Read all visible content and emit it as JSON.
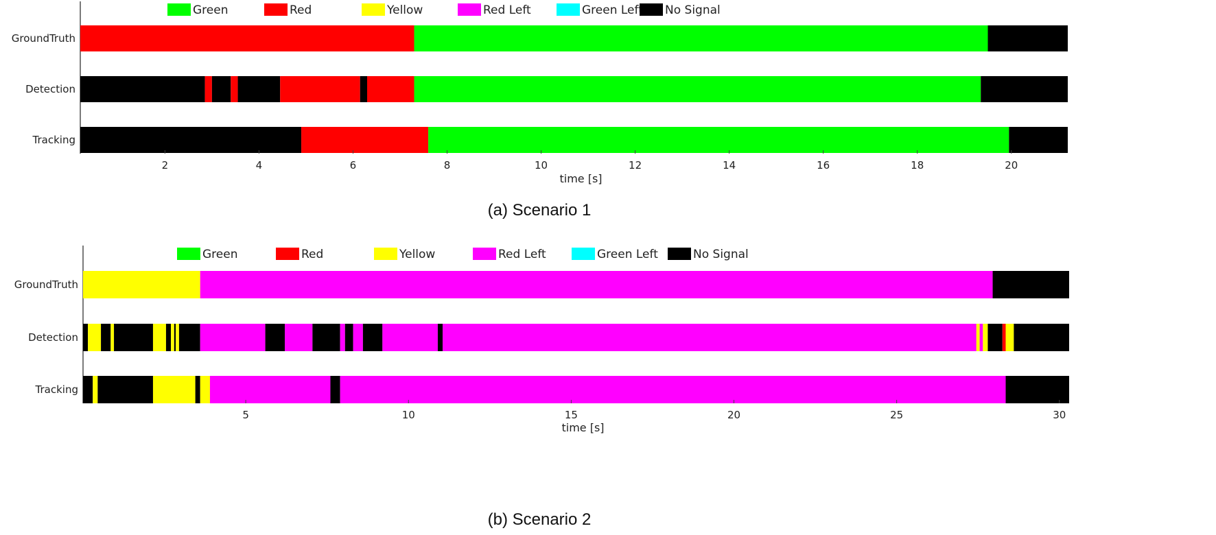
{
  "colors": {
    "Green": "#00ff00",
    "Red": "#ff0000",
    "Yellow": "#ffff00",
    "Red Left": "#ff00ff",
    "Green Left": "#00ffff",
    "No Signal": "#000000"
  },
  "chart_data": [
    {
      "type": "timeline",
      "caption": "(a) Scenario 1",
      "xlabel": "time [s]",
      "xlim": [
        0.2,
        21.2
      ],
      "xticks": [
        2,
        4,
        6,
        8,
        10,
        12,
        14,
        16,
        18,
        20
      ],
      "legend": [
        "Green",
        "Red",
        "Yellow",
        "Red Left",
        "Green Left",
        "No Signal"
      ],
      "rows": [
        {
          "name": "GroundTruth",
          "segments": [
            {
              "start": 0.2,
              "end": 7.3,
              "state": "Red"
            },
            {
              "start": 7.3,
              "end": 19.5,
              "state": "Green"
            },
            {
              "start": 19.5,
              "end": 21.2,
              "state": "No Signal"
            }
          ]
        },
        {
          "name": "Detection",
          "segments": [
            {
              "start": 0.2,
              "end": 2.85,
              "state": "No Signal"
            },
            {
              "start": 2.85,
              "end": 3.0,
              "state": "Red"
            },
            {
              "start": 3.0,
              "end": 3.4,
              "state": "No Signal"
            },
            {
              "start": 3.4,
              "end": 3.55,
              "state": "Red"
            },
            {
              "start": 3.55,
              "end": 4.45,
              "state": "No Signal"
            },
            {
              "start": 4.45,
              "end": 6.15,
              "state": "Red"
            },
            {
              "start": 6.15,
              "end": 6.3,
              "state": "No Signal"
            },
            {
              "start": 6.3,
              "end": 7.3,
              "state": "Red"
            },
            {
              "start": 7.3,
              "end": 19.35,
              "state": "Green"
            },
            {
              "start": 19.35,
              "end": 21.2,
              "state": "No Signal"
            }
          ]
        },
        {
          "name": "Tracking",
          "segments": [
            {
              "start": 0.2,
              "end": 4.9,
              "state": "No Signal"
            },
            {
              "start": 4.9,
              "end": 7.6,
              "state": "Red"
            },
            {
              "start": 7.6,
              "end": 19.95,
              "state": "Green"
            },
            {
              "start": 19.95,
              "end": 21.2,
              "state": "No Signal"
            }
          ]
        }
      ]
    },
    {
      "type": "timeline",
      "caption": "(b) Scenario 2",
      "xlabel": "time [s]",
      "xlim": [
        0,
        30.3
      ],
      "xticks": [
        5,
        10,
        15,
        20,
        25,
        30
      ],
      "legend": [
        "Green",
        "Red",
        "Yellow",
        "Red Left",
        "Green Left",
        "No Signal"
      ],
      "rows": [
        {
          "name": "GroundTruth",
          "segments": [
            {
              "start": 0,
              "end": 3.6,
              "state": "Yellow"
            },
            {
              "start": 3.6,
              "end": 27.95,
              "state": "Red Left"
            },
            {
              "start": 27.95,
              "end": 30.3,
              "state": "No Signal"
            }
          ]
        },
        {
          "name": "Detection",
          "segments": [
            {
              "start": 0.0,
              "end": 0.15,
              "state": "No Signal"
            },
            {
              "start": 0.15,
              "end": 0.55,
              "state": "Yellow"
            },
            {
              "start": 0.55,
              "end": 0.85,
              "state": "No Signal"
            },
            {
              "start": 0.85,
              "end": 0.95,
              "state": "Yellow"
            },
            {
              "start": 0.95,
              "end": 2.15,
              "state": "No Signal"
            },
            {
              "start": 2.15,
              "end": 2.55,
              "state": "Yellow"
            },
            {
              "start": 2.55,
              "end": 2.7,
              "state": "No Signal"
            },
            {
              "start": 2.7,
              "end": 2.8,
              "state": "Yellow"
            },
            {
              "start": 2.8,
              "end": 2.85,
              "state": "No Signal"
            },
            {
              "start": 2.85,
              "end": 2.95,
              "state": "Yellow"
            },
            {
              "start": 2.95,
              "end": 3.6,
              "state": "No Signal"
            },
            {
              "start": 3.6,
              "end": 5.6,
              "state": "Red Left"
            },
            {
              "start": 5.6,
              "end": 6.2,
              "state": "No Signal"
            },
            {
              "start": 6.2,
              "end": 7.05,
              "state": "Red Left"
            },
            {
              "start": 7.05,
              "end": 7.9,
              "state": "No Signal"
            },
            {
              "start": 7.9,
              "end": 8.05,
              "state": "Red Left"
            },
            {
              "start": 8.05,
              "end": 8.3,
              "state": "No Signal"
            },
            {
              "start": 8.3,
              "end": 8.6,
              "state": "Red Left"
            },
            {
              "start": 8.6,
              "end": 9.2,
              "state": "No Signal"
            },
            {
              "start": 9.2,
              "end": 10.9,
              "state": "Red Left"
            },
            {
              "start": 10.9,
              "end": 11.05,
              "state": "No Signal"
            },
            {
              "start": 11.05,
              "end": 27.45,
              "state": "Red Left"
            },
            {
              "start": 27.45,
              "end": 27.55,
              "state": "Yellow"
            },
            {
              "start": 27.55,
              "end": 27.65,
              "state": "Red Left"
            },
            {
              "start": 27.65,
              "end": 27.8,
              "state": "Yellow"
            },
            {
              "start": 27.8,
              "end": 28.25,
              "state": "No Signal"
            },
            {
              "start": 28.25,
              "end": 28.35,
              "state": "Red"
            },
            {
              "start": 28.35,
              "end": 28.6,
              "state": "Yellow"
            },
            {
              "start": 28.6,
              "end": 30.3,
              "state": "No Signal"
            }
          ]
        },
        {
          "name": "Tracking",
          "segments": [
            {
              "start": 0,
              "end": 0.3,
              "state": "No Signal"
            },
            {
              "start": 0.3,
              "end": 0.45,
              "state": "Yellow"
            },
            {
              "start": 0.45,
              "end": 2.15,
              "state": "No Signal"
            },
            {
              "start": 2.15,
              "end": 3.45,
              "state": "Yellow"
            },
            {
              "start": 3.45,
              "end": 3.6,
              "state": "No Signal"
            },
            {
              "start": 3.6,
              "end": 3.9,
              "state": "Yellow"
            },
            {
              "start": 3.9,
              "end": 7.6,
              "state": "Red Left"
            },
            {
              "start": 7.6,
              "end": 7.9,
              "state": "No Signal"
            },
            {
              "start": 7.9,
              "end": 28.35,
              "state": "Red Left"
            },
            {
              "start": 28.35,
              "end": 30.3,
              "state": "No Signal"
            }
          ]
        }
      ]
    }
  ]
}
